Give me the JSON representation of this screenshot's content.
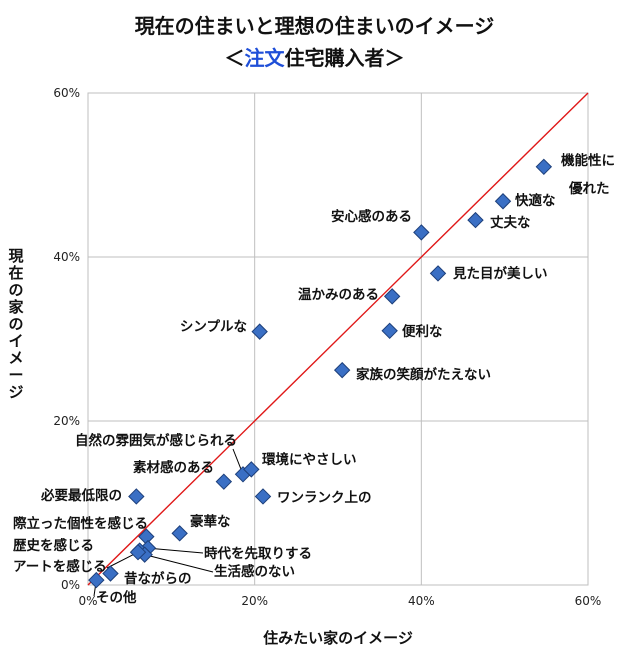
{
  "title": {
    "line1": "現在の住まいと理想の住まいのイメージ",
    "line2_prefix": "＜",
    "line2_highlight": "注文",
    "line2_suffix": "住宅購入者＞"
  },
  "colors": {
    "marker": "#3a6fc4",
    "marker_edge": "#1d3f7a",
    "diagonal": "#e01818",
    "grid": "#bfbfbf",
    "title_highlight": "#1f4fd8"
  },
  "chart_data": {
    "type": "scatter",
    "xlabel": "住みたい家のイメージ",
    "ylabel": "現在の家のイメージ",
    "xlim": [
      0,
      60
    ],
    "ylim": [
      0,
      60
    ],
    "xticks": [
      "0%",
      "20%",
      "40%",
      "60%"
    ],
    "yticks": [
      "0%",
      "20%",
      "40%",
      "60%"
    ],
    "grid": true,
    "reference_line": "y = x",
    "points": [
      {
        "label": "機能性に優れた",
        "x": 54.7,
        "y": 51.0
      },
      {
        "label": "快適な",
        "x": 49.8,
        "y": 46.8
      },
      {
        "label": "丈夫な",
        "x": 46.5,
        "y": 44.5
      },
      {
        "label": "安心感のある",
        "x": 40.0,
        "y": 43.0
      },
      {
        "label": "見た目が美しい",
        "x": 42.0,
        "y": 38.0
      },
      {
        "label": "温かみのある",
        "x": 36.5,
        "y": 35.2
      },
      {
        "label": "便利な",
        "x": 36.2,
        "y": 31.0
      },
      {
        "label": "シンプルな",
        "x": 20.6,
        "y": 30.9
      },
      {
        "label": "家族の笑顔がたえない",
        "x": 30.5,
        "y": 26.2
      },
      {
        "label": "自然の雰囲気が感じられる",
        "x": 18.6,
        "y": 13.5
      },
      {
        "label": "環境にやさしい",
        "x": 19.6,
        "y": 14.1
      },
      {
        "label": "素材感のある",
        "x": 16.3,
        "y": 12.6
      },
      {
        "label": "ワンランク上の",
        "x": 21.0,
        "y": 10.8
      },
      {
        "label": "必要最低限の",
        "x": 5.8,
        "y": 10.8
      },
      {
        "label": "豪華な",
        "x": 11.0,
        "y": 6.3
      },
      {
        "label": "際立った個性を感じる",
        "x": 7.0,
        "y": 5.9
      },
      {
        "label": "時代を先取りする",
        "x": 7.2,
        "y": 4.5
      },
      {
        "label": "歴史を感じる",
        "x": 6.2,
        "y": 4.2
      },
      {
        "label": "生活感のない",
        "x": 6.8,
        "y": 3.7
      },
      {
        "label": "アートを感じる",
        "x": 6.0,
        "y": 4.0
      },
      {
        "label": "昔ながらの",
        "x": 2.7,
        "y": 1.4
      },
      {
        "label": "その他",
        "x": 1.0,
        "y": 0.6
      }
    ]
  }
}
